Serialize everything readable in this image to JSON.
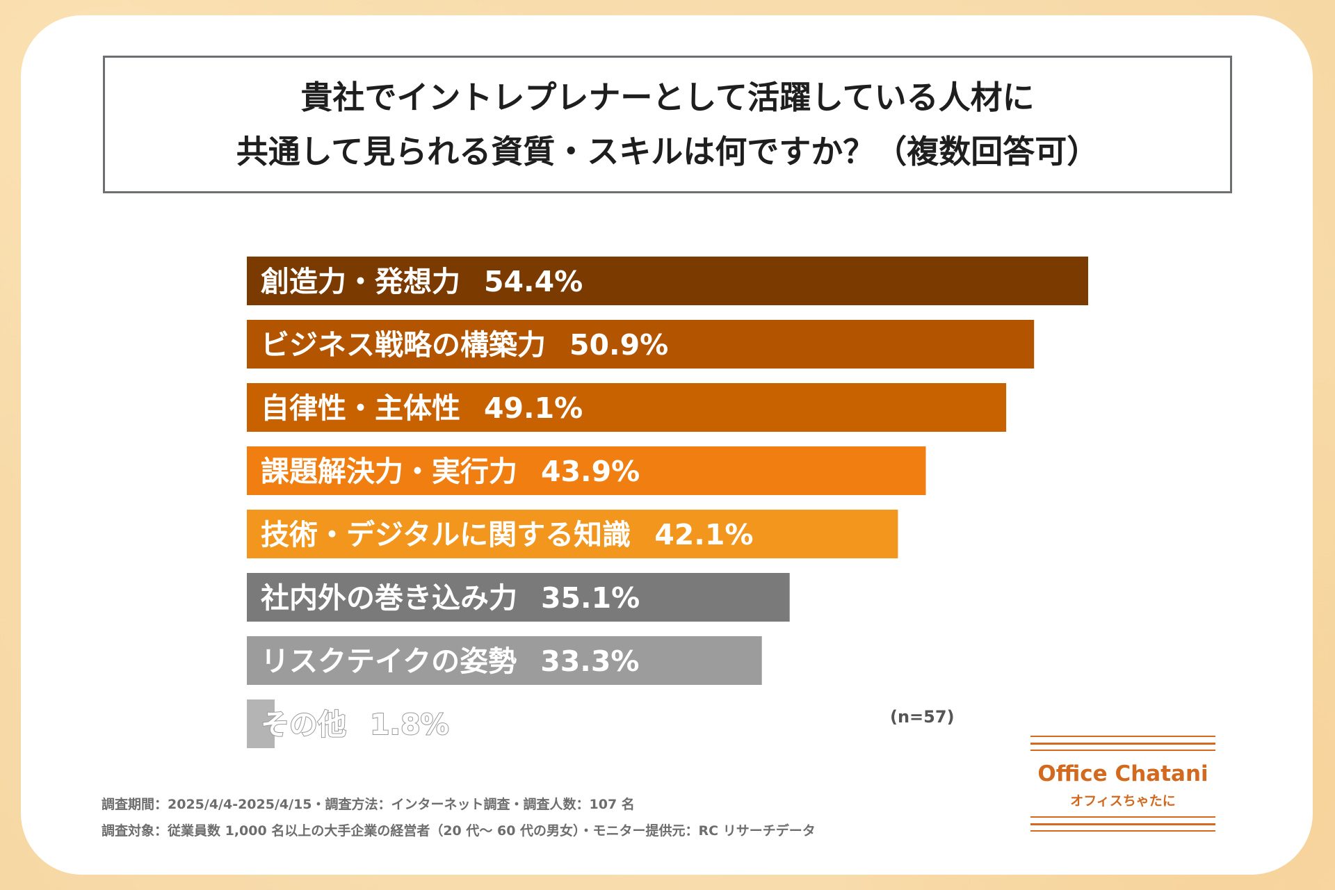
{
  "title": {
    "line1": "貴社でイントレプレナーとして活躍している人材に",
    "line2": "共通して見られる資質・スキルは何ですか？（複数回答可）"
  },
  "chart_data": {
    "type": "bar",
    "orientation": "horizontal",
    "title": "貴社でイントレプレナーとして活躍している人材に共通して見られる資質・スキルは何ですか？（複数回答可）",
    "categories": [
      "創造力・発想力",
      "ビジネス戦略の構築力",
      "自律性・主体性",
      "課題解決力・実行力",
      "技術・デジタルに関する知識",
      "社内外の巻き込み力",
      "リスクテイクの姿勢",
      "その他"
    ],
    "values": [
      54.4,
      50.9,
      49.1,
      43.9,
      42.1,
      35.1,
      33.3,
      1.8
    ],
    "value_labels": [
      "54.4%",
      "50.9%",
      "49.1%",
      "43.9%",
      "42.1%",
      "35.1%",
      "33.3%",
      "1.8%"
    ],
    "colors": [
      "#7a3a00",
      "#b35500",
      "#c86100",
      "#f07e10",
      "#f2961e",
      "#7a7a7a",
      "#9c9c9c",
      "#b4b4b4"
    ],
    "unit": "%",
    "xlim": [
      0,
      54.4
    ],
    "xlabel": "",
    "ylabel": "",
    "grid": false
  },
  "sample_size": "(n=57)",
  "footnotes": {
    "line1": "調査期間：2025/4/4-2025/4/15・調査方法：インターネット調査・調査人数：107 名",
    "line2": "調査対象：従業員数 1,000 名以上の大手企業の経営者（20 代～ 60 代の男女）・モニター提供元：RC リサーチデータ"
  },
  "logo": {
    "main": "Office Chatani",
    "sub": "オフィスちゃたに",
    "color": "#d2691e"
  }
}
